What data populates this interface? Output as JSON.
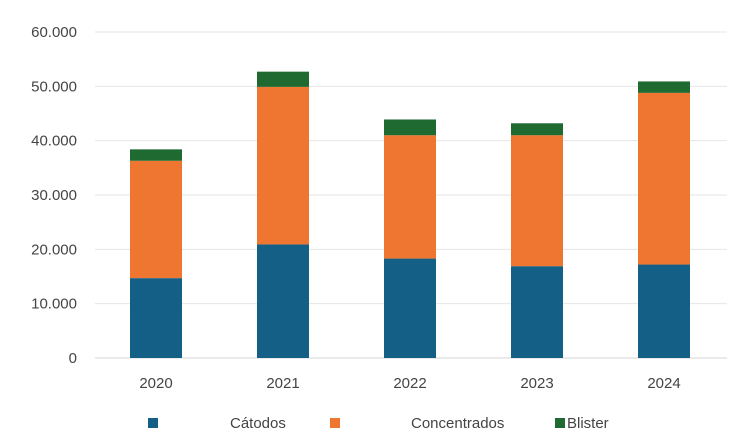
{
  "chart_data": {
    "type": "bar",
    "stacked": true,
    "categories": [
      "2020",
      "2021",
      "2022",
      "2023",
      "2024"
    ],
    "series": [
      {
        "name": "Cátodos",
        "color": "#145f85",
        "values": [
          14700,
          20900,
          18300,
          16900,
          17200
        ]
      },
      {
        "name": "Concentrados",
        "color": "#ef7631",
        "values": [
          21600,
          29000,
          22700,
          24100,
          31600
        ]
      },
      {
        "name": "Blister",
        "color": "#1f6a31",
        "values": [
          2100,
          2800,
          2900,
          2200,
          2100
        ]
      }
    ],
    "ylim": [
      0,
      60000
    ],
    "yticks": [
      0,
      10000,
      20000,
      30000,
      40000,
      50000,
      60000
    ],
    "ytick_labels": [
      "0",
      "10.000",
      "20.000",
      "30.000",
      "40.000",
      "50.000",
      "60.000"
    ],
    "title": "",
    "xlabel": "",
    "ylabel": "",
    "grid": true,
    "legend_position": "bottom"
  }
}
